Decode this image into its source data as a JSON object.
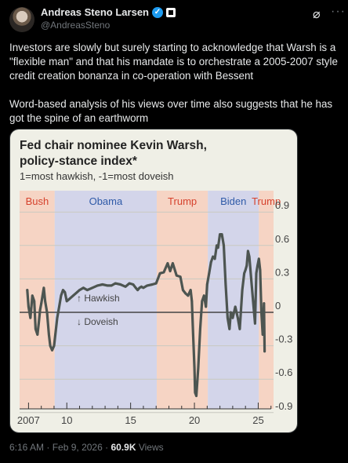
{
  "tweet": {
    "author_name": "Andreas Steno Larsen",
    "handle": "@AndreasSteno",
    "text": "Investors are slowly but surely starting to acknowledge that Warsh is a \"flexible man\" and that his mandate is to orchestrate a 2005-2007 style credit creation bonanza in co-operation with Bessent\n\nWord-based analysis of his views over time also suggests that he has got the spine of an earthworm",
    "time": "6:16 AM",
    "date": "Feb 9, 2026",
    "views_count": "60.9K",
    "views_label": "Views",
    "dot": "·"
  },
  "icons": {
    "verified": "verified-badge-icon",
    "affiliation": "square-badge-icon",
    "grok": "grok-icon",
    "more": "more-icon"
  },
  "colors": {
    "bg": "#000000",
    "chart_bg": "#efefe6",
    "republican": "#f6d4c4",
    "democrat": "#d3d5ea",
    "line": "#4d5551",
    "red_text": "#d6422d",
    "blue_text": "#2f5aa8"
  },
  "chart_data": {
    "type": "line",
    "title_line1": "Fed chair nominee Kevin Warsh,",
    "title_line2": "policy-stance index*",
    "subtitle": "1=most hawkish, -1=most doveish",
    "x_ticks": [
      "2007",
      "10",
      "15",
      "20",
      "25"
    ],
    "y_ticks": [
      "0.9",
      "0.6",
      "0.3",
      "0",
      "-0.3",
      "-0.6",
      "-0.9"
    ],
    "y_range": [
      -0.95,
      0.95
    ],
    "x_range": [
      2006.3,
      2026.2
    ],
    "annotations": [
      "↑ Hawkish",
      "↓ Doveish"
    ],
    "eras": [
      {
        "label": "Bush",
        "start": 2006.3,
        "end": 2009.05,
        "party": "R"
      },
      {
        "label": "Obama",
        "start": 2009.05,
        "end": 2017.05,
        "party": "D"
      },
      {
        "label": "Trump",
        "start": 2017.05,
        "end": 2021.05,
        "party": "R"
      },
      {
        "label": "Biden",
        "start": 2021.05,
        "end": 2025.05,
        "party": "D"
      },
      {
        "label": "Trump",
        "start": 2025.05,
        "end": 2026.2,
        "party": "R"
      }
    ],
    "series": [
      {
        "x": [
          2006.9,
          2007.0,
          2007.15,
          2007.3,
          2007.45,
          2007.55,
          2007.7,
          2007.8,
          2007.9,
          2008.0,
          2008.1,
          2008.2,
          2008.3,
          2008.45,
          2008.6,
          2008.7,
          2008.85,
          2009.0,
          2009.1,
          2009.25,
          2009.4,
          2009.55,
          2009.7,
          2009.85,
          2010.0,
          2010.2,
          2010.5,
          2010.8,
          2011.0,
          2011.3,
          2011.6,
          2012.0,
          2012.4,
          2012.8,
          2013.2,
          2013.5,
          2013.8,
          2014.2,
          2014.6,
          2014.9,
          2015.2,
          2015.4,
          2015.55,
          2015.7,
          2015.85,
          2016.0,
          2016.3,
          2016.7,
          2017.0,
          2017.3,
          2017.6,
          2017.9,
          2018.1,
          2018.3,
          2018.6,
          2018.9,
          2019.1,
          2019.3,
          2019.5,
          2019.7,
          2019.8,
          2019.9,
          2020.0,
          2020.05,
          2020.15,
          2020.3,
          2020.45,
          2020.6,
          2020.75,
          2020.9,
          2021.0,
          2021.15,
          2021.3,
          2021.45,
          2021.6,
          2021.75,
          2021.85,
          2022.0,
          2022.15,
          2022.3,
          2022.45,
          2022.6,
          2022.75,
          2022.85,
          2023.0,
          2023.2,
          2023.4,
          2023.55,
          2023.75,
          2023.9,
          2024.0,
          2024.1,
          2024.2,
          2024.3,
          2024.45,
          2024.6,
          2024.75,
          2024.85,
          2024.95,
          2025.05,
          2025.15,
          2025.25,
          2025.35,
          2025.45,
          2025.5
        ],
        "y": [
          0.2,
          0.05,
          -0.05,
          0.15,
          0.1,
          -0.15,
          -0.2,
          -0.1,
          0.02,
          0.08,
          0.15,
          0.22,
          0.1,
          0.0,
          -0.2,
          -0.3,
          -0.34,
          -0.3,
          -0.2,
          -0.05,
          0.05,
          0.15,
          0.2,
          0.18,
          0.1,
          0.12,
          0.15,
          0.18,
          0.2,
          0.22,
          0.2,
          0.22,
          0.24,
          0.25,
          0.24,
          0.24,
          0.26,
          0.25,
          0.23,
          0.26,
          0.25,
          0.22,
          0.2,
          0.22,
          0.23,
          0.22,
          0.24,
          0.25,
          0.26,
          0.35,
          0.36,
          0.44,
          0.37,
          0.44,
          0.33,
          0.32,
          0.2,
          0.17,
          0.15,
          0.2,
          0.1,
          -0.2,
          -0.5,
          -0.72,
          -0.75,
          -0.5,
          -0.15,
          0.1,
          0.15,
          0.05,
          0.25,
          0.35,
          0.45,
          0.5,
          0.48,
          0.6,
          0.58,
          0.7,
          0.7,
          0.6,
          0.25,
          -0.05,
          -0.15,
          0.0,
          -0.05,
          0.05,
          -0.05,
          -0.15,
          0.2,
          0.35,
          0.38,
          0.42,
          0.55,
          0.5,
          0.3,
          0.1,
          -0.1,
          0.35,
          0.42,
          0.48,
          0.38,
          0.0,
          -0.2,
          0.08,
          -0.35
        ]
      }
    ]
  }
}
